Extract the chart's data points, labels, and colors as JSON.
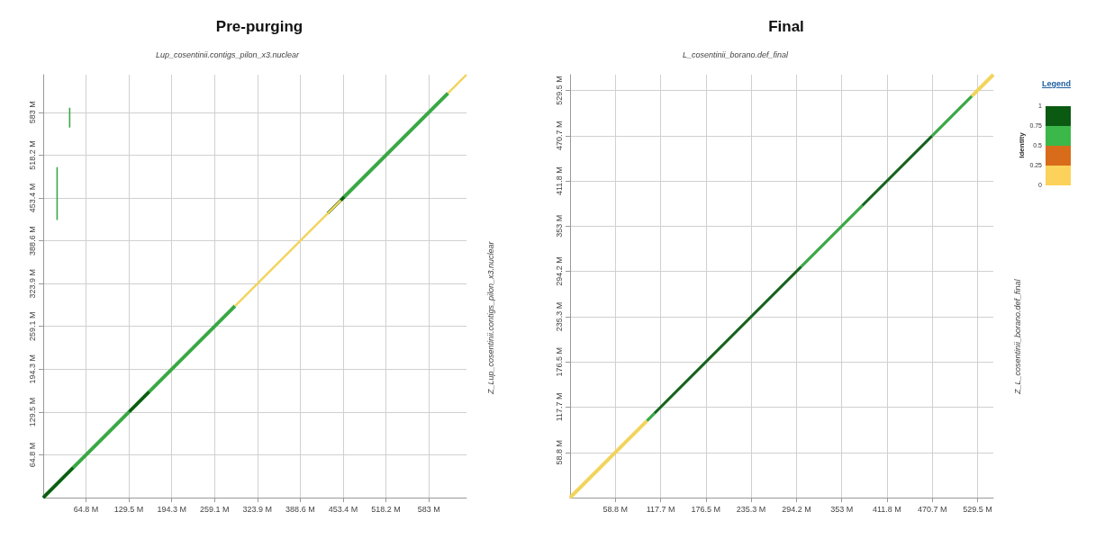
{
  "chart_data": [
    {
      "type": "line",
      "title": "Pre-purging",
      "xlabel": "Lup_cosentinii.contigs_pilon_x3.nuclear",
      "ylabel": "Z_Lup_cosentinii.contigs_pilon_x3.nuclear",
      "xlim": [
        0,
        640
      ],
      "ylim": [
        0,
        640
      ],
      "xticks": [
        {
          "value": 64.8,
          "label": "64.8 M"
        },
        {
          "value": 129.5,
          "label": "129.5 M"
        },
        {
          "value": 194.3,
          "label": "194.3 M"
        },
        {
          "value": 259.1,
          "label": "259.1 M"
        },
        {
          "value": 323.9,
          "label": "323.9 M"
        },
        {
          "value": 388.6,
          "label": "388.6 M"
        },
        {
          "value": 453.4,
          "label": "453.4 M"
        },
        {
          "value": 518.2,
          "label": "518.2 M"
        },
        {
          "value": 583,
          "label": "583 M"
        }
      ],
      "yticks": [
        {
          "value": 64.8,
          "label": "64.8 M"
        },
        {
          "value": 129.5,
          "label": "129.5 M"
        },
        {
          "value": 194.3,
          "label": "194.3 M"
        },
        {
          "value": 259.1,
          "label": "259.1 M"
        },
        {
          "value": 323.9,
          "label": "323.9 M"
        },
        {
          "value": 388.6,
          "label": "388.6 M"
        },
        {
          "value": 453.4,
          "label": "453.4 M"
        },
        {
          "value": 518.2,
          "label": "518.2 M"
        },
        {
          "value": 583,
          "label": "583 M"
        }
      ],
      "grid": true,
      "marker": "none",
      "line_style": "solid",
      "series": [
        {
          "color": "#3aa845",
          "x": [
            0,
            290,
            null,
            450,
            612
          ],
          "values": [
            0,
            290,
            null,
            450,
            612
          ]
        },
        {
          "color": "#0e5a14",
          "x": [
            0,
            45,
            null,
            130,
            160,
            null,
            430,
            455
          ],
          "values": [
            0,
            45,
            null,
            130,
            160,
            null,
            430,
            455
          ]
        },
        {
          "color": "#f2d45c",
          "x": [
            290,
            450,
            null,
            612,
            640
          ],
          "values": [
            290,
            450,
            null,
            612,
            640
          ]
        },
        {
          "color": "#3aa845",
          "x": [
            21,
            21,
            null,
            40,
            40
          ],
          "values": [
            420,
            500,
            null,
            560,
            590
          ]
        }
      ]
    },
    {
      "type": "line",
      "title": "Final",
      "xlabel": "L_cosentinii_borano.def_final",
      "ylabel": "Z_L_cosentinii_borano.def_final",
      "xlim": [
        0,
        550
      ],
      "ylim": [
        0,
        550
      ],
      "xticks": [
        {
          "value": 58.8,
          "label": "58.8 M"
        },
        {
          "value": 117.7,
          "label": "117.7 M"
        },
        {
          "value": 176.5,
          "label": "176.5 M"
        },
        {
          "value": 235.3,
          "label": "235.3 M"
        },
        {
          "value": 294.2,
          "label": "294.2 M"
        },
        {
          "value": 353,
          "label": "353 M"
        },
        {
          "value": 411.8,
          "label": "411.8 M"
        },
        {
          "value": 470.7,
          "label": "470.7 M"
        },
        {
          "value": 529.5,
          "label": "529.5 M"
        }
      ],
      "yticks": [
        {
          "value": 58.8,
          "label": "58.8 M"
        },
        {
          "value": 117.7,
          "label": "117.7 M"
        },
        {
          "value": 176.5,
          "label": "176.5 M"
        },
        {
          "value": 235.3,
          "label": "235.3 M"
        },
        {
          "value": 294.2,
          "label": "294.2 M"
        },
        {
          "value": 353,
          "label": "353 M"
        },
        {
          "value": 411.8,
          "label": "411.8 M"
        },
        {
          "value": 470.7,
          "label": "470.7 M"
        },
        {
          "value": 529.5,
          "label": "529.5 M"
        }
      ],
      "grid": true,
      "marker": "none",
      "line_style": "solid",
      "legend_title": "Legend",
      "clabel": "Identity",
      "clim": [
        0,
        1
      ],
      "cticks": [
        0,
        0.25,
        0.5,
        0.75,
        1
      ],
      "colors": [
        "#fcd25a",
        "#d86c1a",
        "#3cb84a",
        "#0b5a12"
      ],
      "series": [
        {
          "color": "#f2d45c",
          "x": [
            0,
            100,
            null,
            522,
            550
          ],
          "values": [
            0,
            100,
            null,
            522,
            550
          ]
        },
        {
          "color": "#3aa845",
          "x": [
            100,
            522
          ],
          "values": [
            100,
            522
          ]
        },
        {
          "color": "#1d5a22",
          "x": [
            110,
            300,
            null,
            380,
            470
          ],
          "values": [
            110,
            300,
            null,
            380,
            470
          ]
        }
      ]
    }
  ]
}
